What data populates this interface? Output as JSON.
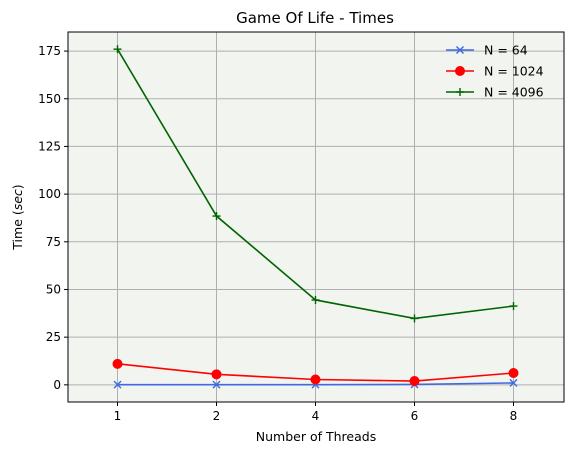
{
  "chart_data": {
    "type": "line",
    "title": "Game Of Life - Times",
    "xlabel": "Number of Threads",
    "ylabel_prefix": "Time (",
    "ylabel_unit": "sec",
    "ylabel_suffix": ")",
    "x_ticks": [
      "1",
      "2",
      "4",
      "6",
      "8"
    ],
    "y_ticks": [
      "0",
      "25",
      "50",
      "75",
      "100",
      "125",
      "150",
      "175"
    ],
    "y_tick_values": [
      0,
      25,
      50,
      75,
      100,
      125,
      150,
      175
    ],
    "ylim": [
      -9,
      185
    ],
    "grid": true,
    "legend_position": "top-right",
    "background_color": "#f1f4ef",
    "series": [
      {
        "name": "N = 64",
        "color": "#4169e1",
        "marker": "x",
        "values": [
          0.1,
          0.1,
          0.1,
          0.2,
          1.0
        ]
      },
      {
        "name": "N = 1024",
        "color": "#ff0000",
        "marker": "circle",
        "values": [
          11.0,
          5.5,
          2.8,
          2.0,
          6.2
        ]
      },
      {
        "name": "N = 4096",
        "color": "#006400",
        "marker": "plus",
        "values": [
          176.0,
          88.5,
          44.5,
          34.8,
          41.3
        ]
      }
    ]
  }
}
